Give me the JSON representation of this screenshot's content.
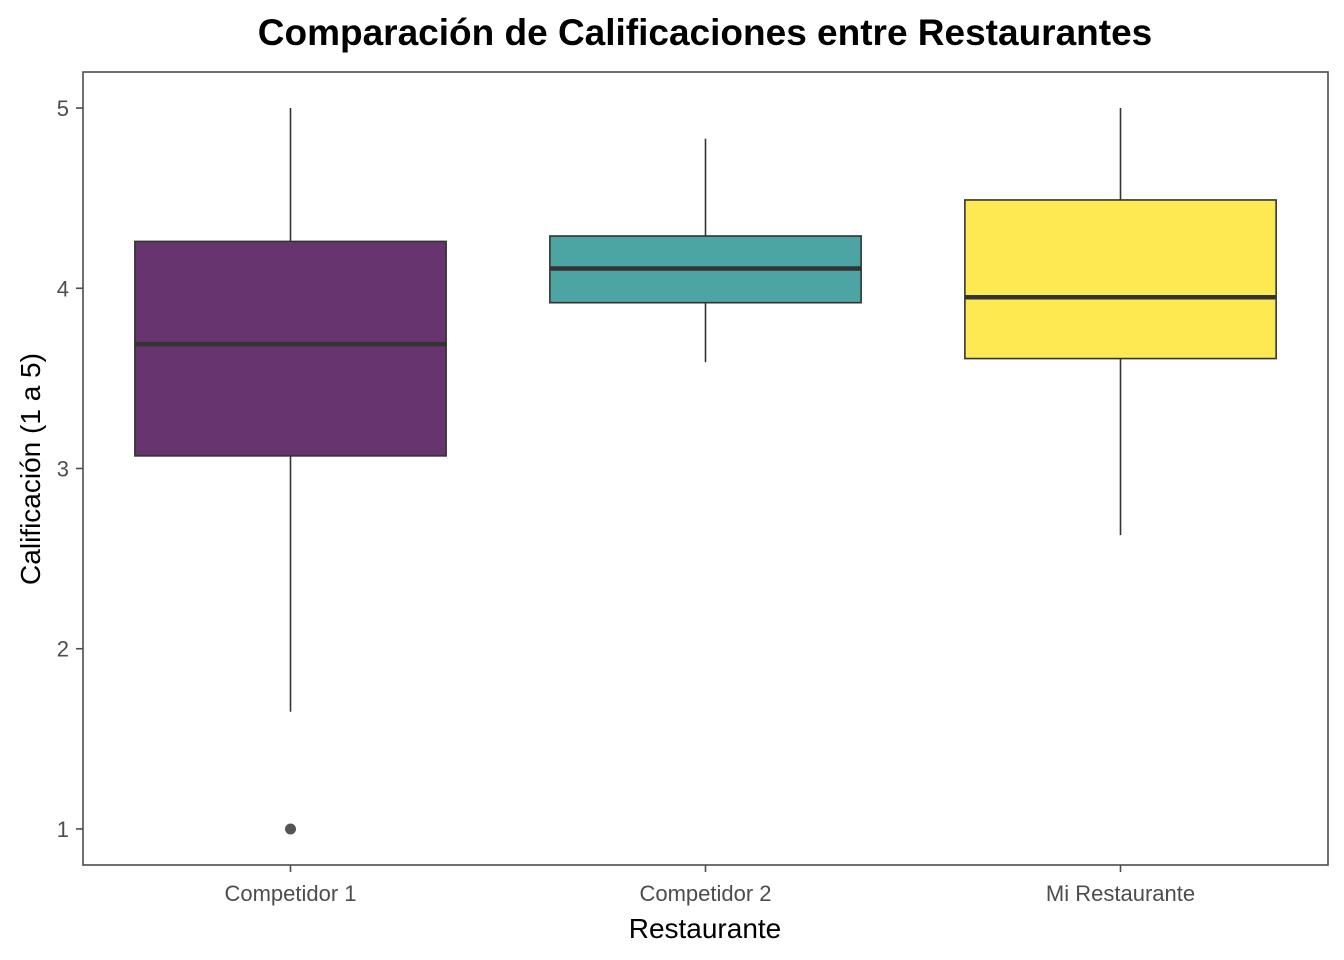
{
  "chart_data": {
    "type": "boxplot",
    "title": "Comparación de Calificaciones entre Restaurantes",
    "xlabel": "Restaurante",
    "ylabel": "Calificación (1 a 5)",
    "categories": [
      "Competidor 1",
      "Competidor 2",
      "Mi Restaurante"
    ],
    "yticks": [
      "1",
      "2",
      "3",
      "4",
      "5"
    ],
    "ylim": [
      0.8,
      5.2
    ],
    "grid": false,
    "boxes": [
      {
        "category": "Competidor 1",
        "min": 1.65,
        "q1": 3.07,
        "median": 3.69,
        "q3": 4.26,
        "max": 5.0,
        "outliers": [
          1.0
        ],
        "color": "#67346f"
      },
      {
        "category": "Competidor 2",
        "min": 3.59,
        "q1": 3.92,
        "median": 4.11,
        "q3": 4.29,
        "max": 4.83,
        "outliers": [],
        "color": "#4ca5a3"
      },
      {
        "category": "Mi Restaurante",
        "min": 2.63,
        "q1": 3.61,
        "median": 3.95,
        "q3": 4.49,
        "max": 5.0,
        "outliers": [],
        "color": "#fdea52"
      }
    ]
  }
}
